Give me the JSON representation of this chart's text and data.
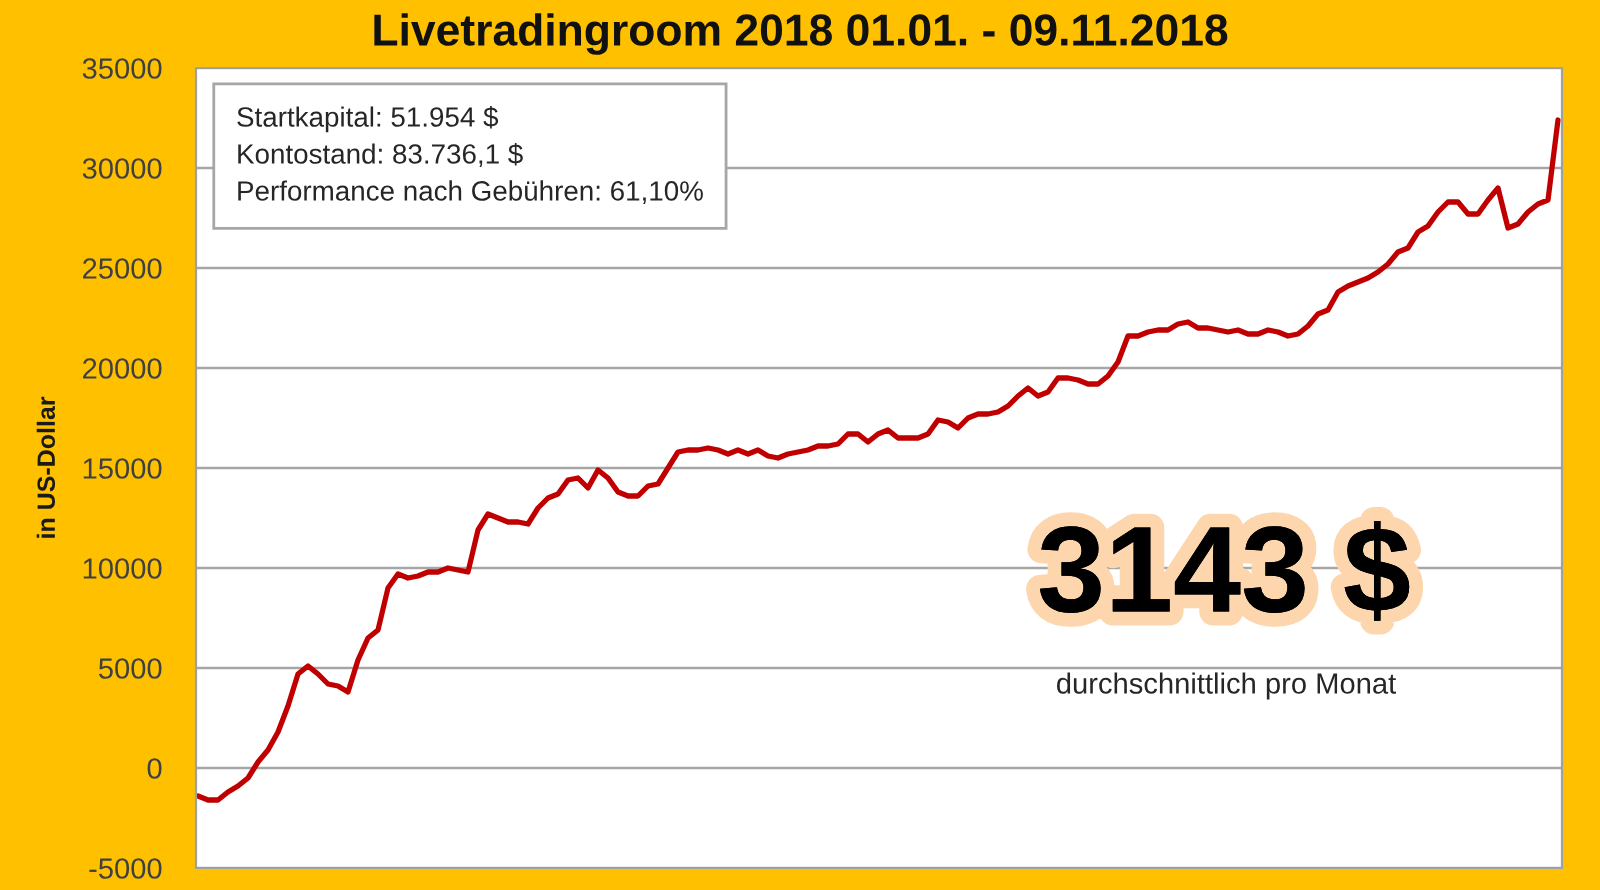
{
  "chart_data": {
    "type": "line",
    "title": "Livetradingroom 2018 01.01. - 09.11.2018",
    "ylabel": "in US-Dollar",
    "categories": [
      null,
      null,
      null,
      null,
      null,
      null,
      null,
      null,
      null,
      null,
      null,
      null,
      null,
      null,
      null,
      null,
      null,
      null,
      null,
      null,
      null,
      null,
      null,
      null,
      null,
      null,
      null,
      null,
      null,
      null,
      null,
      null,
      null,
      null,
      null,
      null,
      null,
      null,
      null,
      null,
      null,
      null,
      null,
      null,
      null,
      null,
      null,
      null,
      null,
      null,
      null,
      null,
      null,
      null,
      null,
      null,
      null,
      null,
      null,
      null,
      null,
      null,
      null,
      null,
      null,
      null,
      null,
      null,
      null,
      null,
      null,
      null,
      null,
      null,
      null,
      null,
      null,
      null,
      null,
      null,
      null,
      null,
      null,
      null,
      null,
      null,
      null,
      null,
      null,
      null,
      null,
      null,
      null,
      null,
      null,
      null,
      null,
      null,
      null,
      null,
      null,
      null,
      null,
      null,
      null,
      null,
      null,
      null,
      null,
      null,
      null,
      null,
      null,
      null,
      null,
      null,
      null,
      null,
      null,
      null,
      null,
      null,
      null,
      null,
      null,
      null,
      null,
      null,
      null,
      null,
      null,
      null,
      null,
      null,
      null,
      null,
      null
    ],
    "series": [
      {
        "color": "#c00000",
        "values": [
          -1400,
          -1600,
          -1600,
          -1200,
          -900,
          -500,
          300,
          900,
          1800,
          3100,
          4700,
          5100,
          4700,
          4200,
          4100,
          3800,
          5400,
          6500,
          6900,
          9000,
          9700,
          9500,
          9600,
          9800,
          9800,
          10000,
          9900,
          9800,
          11900,
          12700,
          12500,
          12300,
          12300,
          12200,
          13000,
          13500,
          13700,
          14400,
          14500,
          14000,
          14900,
          14500,
          13800,
          13600,
          13600,
          14100,
          14200,
          15000,
          15800,
          15900,
          15900,
          16000,
          15900,
          15700,
          15900,
          15700,
          15900,
          15600,
          15500,
          15700,
          15800,
          15900,
          16100,
          16100,
          16200,
          16700,
          16700,
          16300,
          16700,
          16900,
          16500,
          16500,
          16500,
          16700,
          17400,
          17300,
          17000,
          17500,
          17700,
          17700,
          17800,
          18100,
          18600,
          19000,
          18600,
          18800,
          19500,
          19500,
          19400,
          19200,
          19200,
          19600,
          20300,
          21600,
          21600,
          21800,
          21900,
          21900,
          22200,
          22300,
          22000,
          22000,
          21900,
          21800,
          21900,
          21700,
          21700,
          21900,
          21800,
          21600,
          21700,
          22100,
          22700,
          22900,
          23800,
          24100,
          24300,
          24500,
          24800,
          25200,
          25800,
          26000,
          26800,
          27100,
          27800,
          28300,
          28300,
          27700,
          27700,
          28400,
          29000,
          27000,
          27200,
          27800,
          28200,
          28400,
          32400
        ]
      }
    ],
    "ylim": [
      -5000,
      35000
    ],
    "yticks": [
      -5000,
      0,
      5000,
      10000,
      15000,
      20000,
      25000,
      30000,
      35000
    ],
    "grid": "y",
    "tick_labels": "y",
    "annotations": [
      "Startkapital: 51.954 $",
      "Kontostand: 83.736,1 $",
      "Performance nach Gebühren: 61,10%",
      "3143 $",
      "durchschnittlich pro Monat"
    ]
  }
}
